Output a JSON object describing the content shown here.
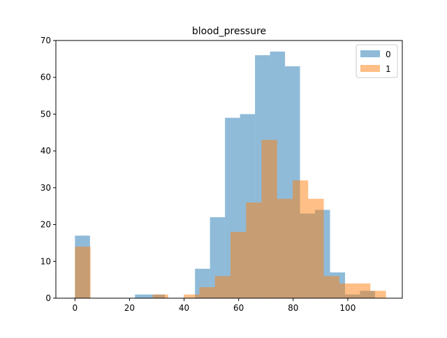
{
  "chart_data": {
    "type": "bar",
    "title": "blood_pressure",
    "xlabel": "",
    "ylabel": "",
    "xlim": [
      -7,
      120
    ],
    "ylim": [
      0,
      70
    ],
    "xticks": [
      0,
      20,
      40,
      60,
      80,
      100
    ],
    "yticks": [
      0,
      10,
      20,
      30,
      40,
      50,
      60,
      70
    ],
    "grid": false,
    "legend_position": "top-right",
    "series": [
      {
        "name": "0",
        "color": "#1f77b4",
        "opacity": 0.5,
        "bins": [
          {
            "x0": 0.0,
            "x1": 5.5,
            "value": 17
          },
          {
            "x0": 22.0,
            "x1": 27.5,
            "value": 1
          },
          {
            "x0": 27.5,
            "x1": 33.0,
            "value": 1
          },
          {
            "x0": 44.0,
            "x1": 49.5,
            "value": 8
          },
          {
            "x0": 49.5,
            "x1": 55.0,
            "value": 22
          },
          {
            "x0": 55.0,
            "x1": 60.5,
            "value": 49
          },
          {
            "x0": 60.5,
            "x1": 66.0,
            "value": 50
          },
          {
            "x0": 66.0,
            "x1": 71.5,
            "value": 66
          },
          {
            "x0": 71.5,
            "x1": 77.0,
            "value": 67
          },
          {
            "x0": 77.0,
            "x1": 82.5,
            "value": 63
          },
          {
            "x0": 82.5,
            "x1": 88.0,
            "value": 23
          },
          {
            "x0": 88.0,
            "x1": 93.5,
            "value": 24
          },
          {
            "x0": 93.5,
            "x1": 99.0,
            "value": 7
          },
          {
            "x0": 99.0,
            "x1": 104.5,
            "value": 1
          },
          {
            "x0": 104.5,
            "x1": 110.0,
            "value": 2
          }
        ]
      },
      {
        "name": "1",
        "color": "#ff7f0e",
        "opacity": 0.5,
        "bins": [
          {
            "x0": 0.0,
            "x1": 5.7,
            "value": 14
          },
          {
            "x0": 28.5,
            "x1": 34.2,
            "value": 1
          },
          {
            "x0": 39.9,
            "x1": 45.6,
            "value": 1
          },
          {
            "x0": 45.6,
            "x1": 51.3,
            "value": 3
          },
          {
            "x0": 51.3,
            "x1": 57.0,
            "value": 6
          },
          {
            "x0": 57.0,
            "x1": 62.7,
            "value": 18
          },
          {
            "x0": 62.7,
            "x1": 68.4,
            "value": 26
          },
          {
            "x0": 68.4,
            "x1": 74.1,
            "value": 43
          },
          {
            "x0": 74.1,
            "x1": 79.8,
            "value": 27
          },
          {
            "x0": 79.8,
            "x1": 85.5,
            "value": 32
          },
          {
            "x0": 85.5,
            "x1": 91.2,
            "value": 27
          },
          {
            "x0": 91.2,
            "x1": 96.9,
            "value": 6
          },
          {
            "x0": 96.9,
            "x1": 102.6,
            "value": 4
          },
          {
            "x0": 102.6,
            "x1": 108.3,
            "value": 4
          },
          {
            "x0": 108.3,
            "x1": 114.0,
            "value": 2
          }
        ]
      }
    ]
  }
}
